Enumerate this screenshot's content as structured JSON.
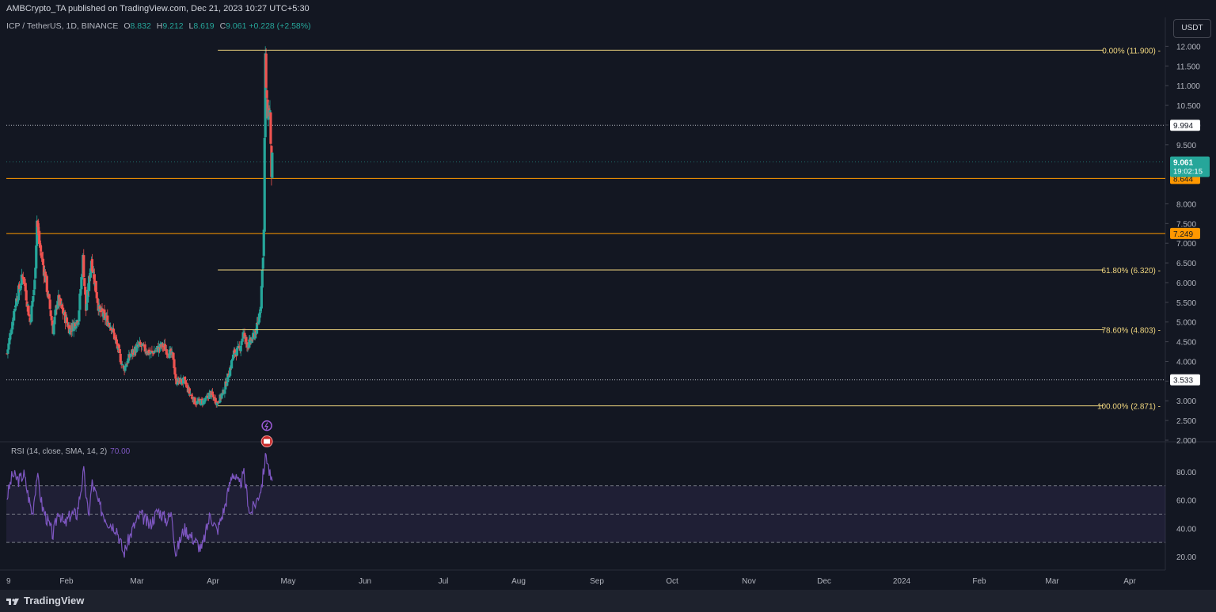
{
  "header": {
    "publisher_line": "AMBCrypto_TA published on TradingView.com, Dec 21, 2023 10:27 UTC+5:30",
    "symbol": "ICP / TetherUS, 1D, BINANCE",
    "ohlc": {
      "o_label": "O",
      "o": "8.832",
      "h_label": "H",
      "h": "9.212",
      "l_label": "L",
      "l": "8.619",
      "c_label": "C",
      "c": "9.061",
      "change": "+0.228 (+2.58%)"
    },
    "currency": "USDT"
  },
  "footer": {
    "brand": "TradingView"
  },
  "chart_data": [
    {
      "type": "candlestick",
      "title": "ICP / TetherUS, 1D, BINANCE",
      "x_labels": [
        "9",
        "Feb",
        "Mar",
        "Apr",
        "May",
        "Jun",
        "Jul",
        "Aug",
        "Sep",
        "Oct",
        "Nov",
        "Dec",
        "2024",
        "Feb",
        "Mar",
        "Apr"
      ],
      "y_axis": {
        "ylim": [
          2.0,
          12.25
        ],
        "ticks": [
          "2.000",
          "2.500",
          "3.000",
          "3.500",
          "4.000",
          "4.500",
          "5.000",
          "5.500",
          "6.000",
          "6.500",
          "7.000",
          "7.500",
          "8.000",
          "9.500",
          "10.000",
          "10.500",
          "11.000",
          "11.500",
          "12.000"
        ],
        "position": "right"
      },
      "price_anchors": [
        {
          "date": "2023-01-09",
          "value": 4.2
        },
        {
          "date": "2023-01-20",
          "value": 5.5
        },
        {
          "date": "2023-01-30",
          "value": 6.2
        },
        {
          "date": "2023-02-08",
          "value": 5.0
        },
        {
          "date": "2023-02-14",
          "value": 6.0
        },
        {
          "date": "2023-02-17",
          "value": 7.6
        },
        {
          "date": "2023-02-20",
          "value": 7.0
        },
        {
          "date": "2023-03-01",
          "value": 6.0
        },
        {
          "date": "2023-03-10",
          "value": 4.8
        },
        {
          "date": "2023-03-16",
          "value": 5.6
        },
        {
          "date": "2023-04-01",
          "value": 4.8
        },
        {
          "date": "2023-04-12",
          "value": 5.1
        },
        {
          "date": "2023-04-18",
          "value": 6.6
        },
        {
          "date": "2023-04-22",
          "value": 5.3
        },
        {
          "date": "2023-04-29",
          "value": 6.6
        },
        {
          "date": "2023-05-09",
          "value": 5.3
        },
        {
          "date": "2023-05-25",
          "value": 4.9
        },
        {
          "date": "2023-06-10",
          "value": 3.8
        },
        {
          "date": "2023-06-20",
          "value": 4.2
        },
        {
          "date": "2023-07-01",
          "value": 4.4
        },
        {
          "date": "2023-07-15",
          "value": 4.2
        },
        {
          "date": "2023-07-31",
          "value": 4.4
        },
        {
          "date": "2023-08-14",
          "value": 4.1
        },
        {
          "date": "2023-08-17",
          "value": 3.5
        },
        {
          "date": "2023-08-28",
          "value": 3.5
        },
        {
          "date": "2023-09-04",
          "value": 3.2
        },
        {
          "date": "2023-09-12",
          "value": 2.95
        },
        {
          "date": "2023-09-25",
          "value": 3.0
        },
        {
          "date": "2023-10-01",
          "value": 3.2
        },
        {
          "date": "2023-10-10",
          "value": 2.95
        },
        {
          "date": "2023-10-18",
          "value": 3.2
        },
        {
          "date": "2023-10-24",
          "value": 3.6
        },
        {
          "date": "2023-11-01",
          "value": 4.2
        },
        {
          "date": "2023-11-08",
          "value": 4.3
        },
        {
          "date": "2023-11-13",
          "value": 4.7
        },
        {
          "date": "2023-11-19",
          "value": 4.4
        },
        {
          "date": "2023-11-26",
          "value": 4.6
        },
        {
          "date": "2023-12-02",
          "value": 4.9
        },
        {
          "date": "2023-12-06",
          "value": 5.5
        },
        {
          "date": "2023-12-08",
          "value": 6.3
        },
        {
          "date": "2023-12-10",
          "value": 7.3
        },
        {
          "date": "2023-12-11",
          "value": 9.6
        },
        {
          "date": "2023-12-12",
          "value": 11.6
        },
        {
          "date": "2023-12-14",
          "value": 10.4
        },
        {
          "date": "2023-12-18",
          "value": 10.3
        },
        {
          "date": "2023-12-19",
          "value": 9.3
        },
        {
          "date": "2023-12-20",
          "value": 8.8
        },
        {
          "date": "2023-12-21",
          "value": 9.061
        }
      ],
      "swing_high": 11.9,
      "swing_low": 2.871,
      "horizontal_levels": [
        {
          "value": 9.994,
          "label": "9.994",
          "style": "dotted",
          "color": "#b2b5be"
        },
        {
          "value": 8.644,
          "label": "8.644",
          "style": "solid",
          "color": "#ff9800"
        },
        {
          "value": 7.249,
          "label": "7.249",
          "style": "solid",
          "color": "#ff9800"
        },
        {
          "value": 3.533,
          "label": "3.533",
          "style": "dotted",
          "color": "#b2b5be"
        }
      ],
      "fibonacci": [
        {
          "label": "0.00% (11.900)",
          "value": 11.9
        },
        {
          "label": "61.80% (6.320)",
          "value": 6.32
        },
        {
          "label": "78.60% (4.803)",
          "value": 4.803
        },
        {
          "label": "100.00% (2.871)",
          "value": 2.871
        }
      ],
      "last_price": {
        "value": "9.061",
        "countdown": "19:02:15",
        "color": "#26a69a"
      },
      "colors": {
        "up": "#26a69a",
        "down": "#ef5350",
        "fib": "#f0d67f"
      }
    },
    {
      "type": "line",
      "title": "RSI (14, close, SMA, 14, 2)",
      "current_value": "70.00",
      "ylim": [
        15,
        100
      ],
      "ticks": [
        "20.00",
        "40.00",
        "60.00",
        "80.00"
      ],
      "bands": [
        30,
        50,
        70
      ],
      "rsi_anchors": [
        {
          "date": "2023-01-09",
          "value": 62
        },
        {
          "date": "2023-01-16",
          "value": 78
        },
        {
          "date": "2023-01-24",
          "value": 74
        },
        {
          "date": "2023-01-31",
          "value": 78
        },
        {
          "date": "2023-02-06",
          "value": 62
        },
        {
          "date": "2023-02-11",
          "value": 50
        },
        {
          "date": "2023-02-17",
          "value": 78
        },
        {
          "date": "2023-02-24",
          "value": 55
        },
        {
          "date": "2023-03-10",
          "value": 35
        },
        {
          "date": "2023-03-17",
          "value": 53
        },
        {
          "date": "2023-03-25",
          "value": 42
        },
        {
          "date": "2023-04-02",
          "value": 50
        },
        {
          "date": "2023-04-10",
          "value": 50
        },
        {
          "date": "2023-04-19",
          "value": 80
        },
        {
          "date": "2023-04-25",
          "value": 48
        },
        {
          "date": "2023-04-30",
          "value": 72
        },
        {
          "date": "2023-05-10",
          "value": 55
        },
        {
          "date": "2023-05-20",
          "value": 45
        },
        {
          "date": "2023-06-01",
          "value": 40
        },
        {
          "date": "2023-06-10",
          "value": 22
        },
        {
          "date": "2023-06-22",
          "value": 40
        },
        {
          "date": "2023-07-02",
          "value": 50
        },
        {
          "date": "2023-07-14",
          "value": 42
        },
        {
          "date": "2023-07-25",
          "value": 53
        },
        {
          "date": "2023-08-05",
          "value": 46
        },
        {
          "date": "2023-08-12",
          "value": 50
        },
        {
          "date": "2023-08-17",
          "value": 22
        },
        {
          "date": "2023-08-28",
          "value": 40
        },
        {
          "date": "2023-09-10",
          "value": 32
        },
        {
          "date": "2023-09-20",
          "value": 25
        },
        {
          "date": "2023-10-01",
          "value": 50
        },
        {
          "date": "2023-10-10",
          "value": 38
        },
        {
          "date": "2023-10-20",
          "value": 55
        },
        {
          "date": "2023-10-30",
          "value": 80
        },
        {
          "date": "2023-11-08",
          "value": 70
        },
        {
          "date": "2023-11-14",
          "value": 78
        },
        {
          "date": "2023-11-22",
          "value": 50
        },
        {
          "date": "2023-12-01",
          "value": 60
        },
        {
          "date": "2023-12-07",
          "value": 70
        },
        {
          "date": "2023-12-13",
          "value": 93
        },
        {
          "date": "2023-12-17",
          "value": 80
        },
        {
          "date": "2023-12-21",
          "value": 70
        }
      ],
      "color": "#7e57c2"
    }
  ]
}
